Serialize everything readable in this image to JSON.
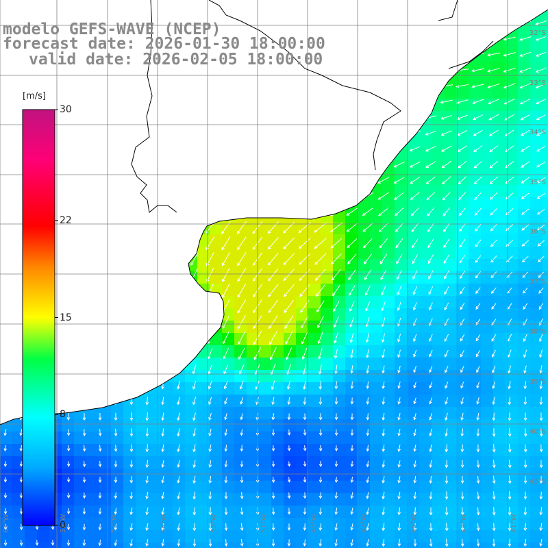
{
  "title": {
    "model": "modelo GEFS-WAVE (NCEP)",
    "forecast": "forecast date: 2026-01-30 18:00:00",
    "valid": "valid date: 2026-02-05 18:00:00"
  },
  "legend": {
    "unit": "[m/s]",
    "ticks": [
      {
        "value": 30,
        "label": "30"
      },
      {
        "value": 22,
        "label": "22"
      },
      {
        "value": 15,
        "label": "15"
      },
      {
        "value": 8,
        "label": "8"
      },
      {
        "value": 0,
        "label": "0"
      }
    ],
    "min": 0,
    "max": 30,
    "colors": [
      "#0000ff",
      "#00aaff",
      "#00ffff",
      "#00ff00",
      "#ffff00",
      "#ff8800",
      "#ff0000",
      "#ff0077",
      "#c0137f"
    ]
  },
  "map": {
    "land_color": "#ffffff",
    "coastline_color": "#000000",
    "grid_color": "#808080",
    "longitude_labels": [
      "61°W",
      "59°W",
      "57°W",
      "55°W",
      "53°W",
      "51°W",
      "49°W",
      "47°W",
      "45°W",
      "43°W",
      "41°W"
    ],
    "latitude_labels": [
      "32°S",
      "33°S",
      "34°S",
      "35°S",
      "36°S",
      "37°S",
      "38°S",
      "39°S",
      "40°S",
      "41°S"
    ]
  },
  "wind_field": {
    "variable": "wind speed",
    "units": "m/s",
    "direction": "arrows pointing southwest/west in the north, south in the south",
    "max_speed_approx": 15,
    "strongest_region": "off the mouth of the Rio de la Plata"
  }
}
